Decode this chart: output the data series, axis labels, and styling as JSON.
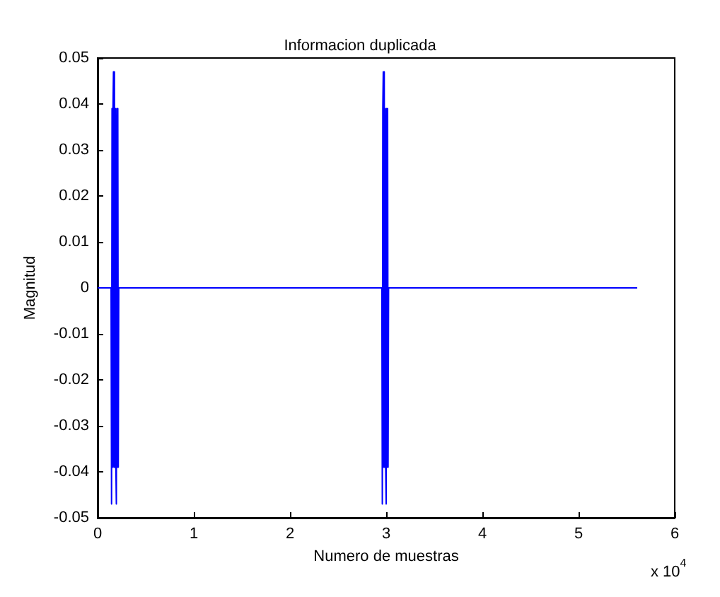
{
  "chart_data": {
    "type": "line",
    "title": "Informacion duplicada",
    "xlabel": "Numero de muestras",
    "ylabel": "Magnitud",
    "annotations": [
      "x 10$^{4}$"
    ],
    "xlim": [
      0,
      6
    ],
    "xticks": [
      0,
      1,
      2,
      3,
      4,
      5,
      6
    ],
    "ylim": [
      -0.05,
      0.05
    ],
    "yticks": [
      -0.05,
      -0.04,
      -0.03,
      -0.02,
      -0.01,
      0,
      0.01,
      0.02,
      0.03,
      0.04,
      0.05
    ],
    "grid": false,
    "marker": "none",
    "line_style": "solid",
    "series": [
      {
        "color": "#0000ff",
        "x": [
          0,
          0.14,
          0.145,
          0.15,
          0.155,
          0.16,
          0.165,
          0.17,
          0.175,
          0.18,
          0.185,
          0.19,
          0.195,
          0.2,
          0.205,
          0.21,
          0.215,
          0.22,
          2.94,
          2.955,
          2.96,
          2.965,
          2.97,
          2.975,
          2.98,
          2.985,
          2.99,
          2.995,
          3.0,
          3.005,
          3.01,
          3.015,
          3.02,
          3.025,
          5.61
        ],
        "values": [
          0,
          0,
          -0.047,
          0.039,
          -0.039,
          0.039,
          0.047,
          -0.039,
          0.047,
          -0.039,
          0.039,
          -0.039,
          -0.047,
          0.039,
          -0.039,
          0.039,
          -0.039,
          0,
          0,
          0,
          -0.047,
          0.039,
          0.047,
          -0.039,
          0.047,
          -0.039,
          0.039,
          -0.039,
          -0.047,
          0.039,
          -0.039,
          0.039,
          -0.039,
          0,
          0
        ]
      }
    ]
  }
}
